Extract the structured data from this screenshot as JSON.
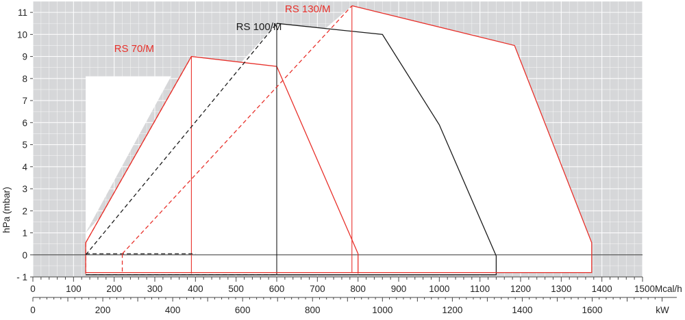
{
  "chart_data": {
    "type": "line",
    "title": "",
    "ylabel": "hPa (mbar)",
    "xlabel": "Mcal/h",
    "x2label": "kW",
    "xlim": [
      0,
      1500
    ],
    "ylim": [
      -1,
      11.5
    ],
    "x2lim": [
      0,
      1744
    ],
    "x_ticks": [
      0,
      100,
      200,
      300,
      400,
      500,
      600,
      700,
      800,
      900,
      1000,
      1100,
      1200,
      1300,
      1400,
      1500
    ],
    "x_tick_labels": [
      "0",
      "100",
      "200",
      "300",
      "400",
      "500",
      "600",
      "700",
      "800",
      "900",
      "1000",
      "1100",
      "1200",
      "1300",
      "1400",
      "1500Mcal/h"
    ],
    "x2_ticks": [
      0,
      200,
      400,
      600,
      800,
      1000,
      1200,
      1400,
      1600
    ],
    "x2_tick_labels": [
      "0",
      "200",
      "400",
      "600",
      "800",
      "1000",
      "1200",
      "1400",
      "1600"
    ],
    "y_ticks": [
      -1,
      0,
      1,
      2,
      3,
      4,
      5,
      6,
      7,
      8,
      9,
      10,
      11
    ],
    "y_tick_labels": [
      "- 1",
      "0",
      "1",
      "2",
      "3",
      "4",
      "5",
      "6",
      "7",
      "8",
      "9",
      "10",
      "11"
    ],
    "grid": true,
    "background_color": "#d6d7d9",
    "grid_color": "#ffffff",
    "series": [
      {
        "name": "RS 70/M",
        "color": "#e8302a",
        "label_at": [
          200,
          9.2
        ],
        "outline": [
          [
            130,
            -0.85
          ],
          [
            130,
            0.55
          ],
          [
            390,
            9.0
          ],
          [
            600,
            8.55
          ],
          [
            800,
            0.05
          ],
          [
            800,
            -0.85
          ]
        ],
        "dashed": [
          [
            [
              130,
              0.55
            ],
            [
              390,
              9.0
            ]
          ],
          [
            [
              130,
              0.55
            ],
            [
              130,
              -0.85
            ]
          ]
        ],
        "vertical": [
          390,
          -0.85,
          9.0
        ]
      },
      {
        "name": "RS 100/M",
        "color": "#1a1a1a",
        "label_at": [
          500,
          10.2
        ],
        "outline": [
          [
            600,
            10.5
          ],
          [
            860,
            10.0
          ],
          [
            1000,
            5.9
          ],
          [
            1140,
            -0.05
          ],
          [
            1140,
            -0.9
          ],
          [
            130,
            -0.9
          ]
        ],
        "dashed": [
          [
            [
              130,
              0.0
            ],
            [
              600,
              10.5
            ]
          ],
          [
            [
              130,
              0.05
            ],
            [
              400,
              0.05
            ]
          ],
          [
            [
              130,
              -0.9
            ],
            [
              600,
              -0.9
            ]
          ]
        ],
        "vertical": [
          600,
          -0.9,
          10.5
        ]
      },
      {
        "name": "RS 130/M",
        "color": "#e8302a",
        "label_at": [
          620,
          11.0
        ],
        "outline": [
          [
            785,
            11.3
          ],
          [
            1185,
            9.5
          ],
          [
            1375,
            0.55
          ],
          [
            1375,
            -0.8
          ],
          [
            130,
            -0.8
          ]
        ],
        "dashed": [
          [
            [
              220,
              0.05
            ],
            [
              785,
              11.3
            ]
          ],
          [
            [
              220,
              0.05
            ],
            [
              220,
              -0.8
            ]
          ]
        ],
        "vertical": [
          785,
          -0.8,
          11.3
        ]
      }
    ]
  }
}
